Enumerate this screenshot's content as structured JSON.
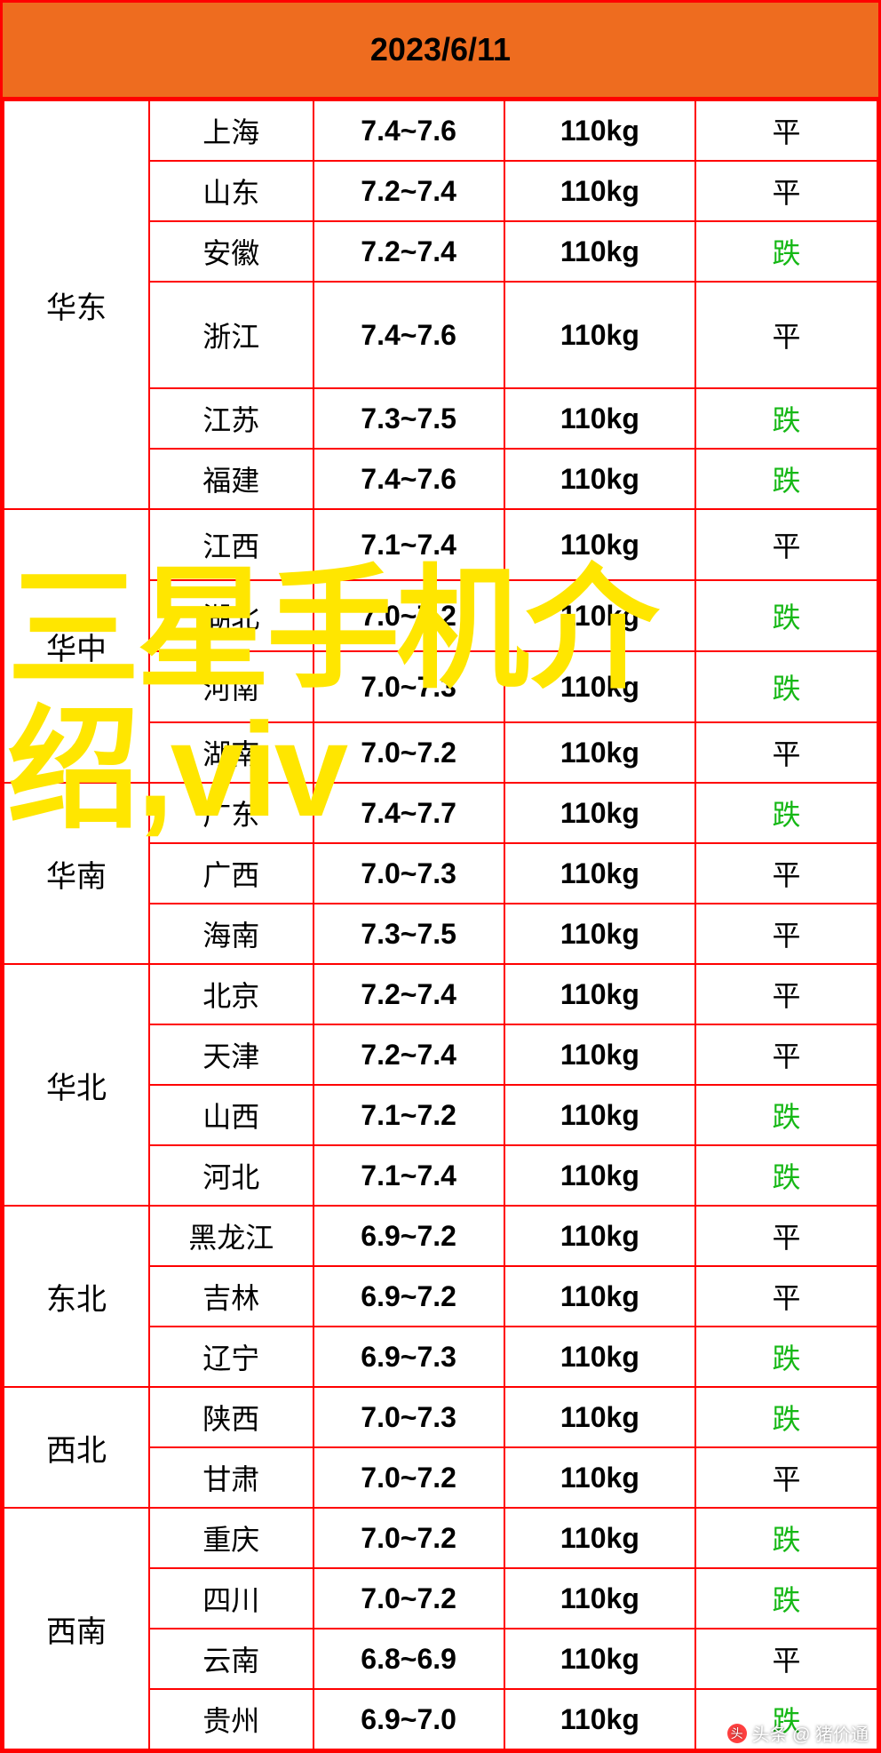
{
  "header": {
    "date": "2023/6/11"
  },
  "colors": {
    "header_bg": "#ee6c1f",
    "border": "#ff0000",
    "trend_flat": "#000000",
    "trend_down": "#16b816",
    "overlay_text": "#ffe600"
  },
  "trend_labels": {
    "flat": "平",
    "down": "跌"
  },
  "regions": [
    {
      "name": "华东",
      "rows": [
        {
          "province": "上海",
          "price": "7.4~7.6",
          "weight": "110kg",
          "trend": "flat",
          "h": "short"
        },
        {
          "province": "山东",
          "price": "7.2~7.4",
          "weight": "110kg",
          "trend": "flat",
          "h": "short"
        },
        {
          "province": "安徽",
          "price": "7.2~7.4",
          "weight": "110kg",
          "trend": "down",
          "h": "short"
        },
        {
          "province": "浙江",
          "price": "7.4~7.6",
          "weight": "110kg",
          "trend": "flat",
          "h": "tall"
        },
        {
          "province": "江苏",
          "price": "7.3~7.5",
          "weight": "110kg",
          "trend": "down",
          "h": "short"
        },
        {
          "province": "福建",
          "price": "7.4~7.6",
          "weight": "110kg",
          "trend": "down",
          "h": "short"
        }
      ]
    },
    {
      "name": "华中",
      "rows": [
        {
          "province": "江西",
          "price": "7.1~7.4",
          "weight": "110kg",
          "trend": "flat",
          "h": "med"
        },
        {
          "province": "湖北",
          "price": "7.0~7.2",
          "weight": "110kg",
          "trend": "down",
          "h": "med"
        },
        {
          "province": "河南",
          "price": "7.0~7.3",
          "weight": "110kg",
          "trend": "down",
          "h": "med"
        },
        {
          "province": "湖南",
          "price": "7.0~7.2",
          "weight": "110kg",
          "trend": "flat",
          "h": "short"
        }
      ]
    },
    {
      "name": "华南",
      "rows": [
        {
          "province": "广东",
          "price": "7.4~7.7",
          "weight": "110kg",
          "trend": "down",
          "h": "short"
        },
        {
          "province": "广西",
          "price": "7.0~7.3",
          "weight": "110kg",
          "trend": "flat",
          "h": "short"
        },
        {
          "province": "海南",
          "price": "7.3~7.5",
          "weight": "110kg",
          "trend": "flat",
          "h": "short"
        }
      ]
    },
    {
      "name": "华北",
      "rows": [
        {
          "province": "北京",
          "price": "7.2~7.4",
          "weight": "110kg",
          "trend": "flat",
          "h": "short"
        },
        {
          "province": "天津",
          "price": "7.2~7.4",
          "weight": "110kg",
          "trend": "flat",
          "h": "short"
        },
        {
          "province": "山西",
          "price": "7.1~7.2",
          "weight": "110kg",
          "trend": "down",
          "h": "short"
        },
        {
          "province": "河北",
          "price": "7.1~7.4",
          "weight": "110kg",
          "trend": "down",
          "h": "short"
        }
      ]
    },
    {
      "name": "东北",
      "rows": [
        {
          "province": "黑龙江",
          "price": "6.9~7.2",
          "weight": "110kg",
          "trend": "flat",
          "h": "short"
        },
        {
          "province": "吉林",
          "price": "6.9~7.2",
          "weight": "110kg",
          "trend": "flat",
          "h": "short"
        },
        {
          "province": "辽宁",
          "price": "6.9~7.3",
          "weight": "110kg",
          "trend": "down",
          "h": "short"
        }
      ]
    },
    {
      "name": "西北",
      "rows": [
        {
          "province": "陕西",
          "price": "7.0~7.3",
          "weight": "110kg",
          "trend": "down",
          "h": "short"
        },
        {
          "province": "甘肃",
          "price": "7.0~7.2",
          "weight": "110kg",
          "trend": "flat",
          "h": "short"
        }
      ]
    },
    {
      "name": "西南",
      "rows": [
        {
          "province": "重庆",
          "price": "7.0~7.2",
          "weight": "110kg",
          "trend": "down",
          "h": "short"
        },
        {
          "province": "四川",
          "price": "7.0~7.2",
          "weight": "110kg",
          "trend": "down",
          "h": "short"
        },
        {
          "province": "云南",
          "price": "6.8~6.9",
          "weight": "110kg",
          "trend": "flat",
          "h": "short"
        },
        {
          "province": "贵州",
          "price": "6.9~7.0",
          "weight": "110kg",
          "trend": "down",
          "h": "short"
        }
      ]
    }
  ],
  "overlay": {
    "line1": "三星手机介",
    "line2": "绍,viv"
  },
  "watermark": {
    "text": "头条 @ 猪价通"
  }
}
